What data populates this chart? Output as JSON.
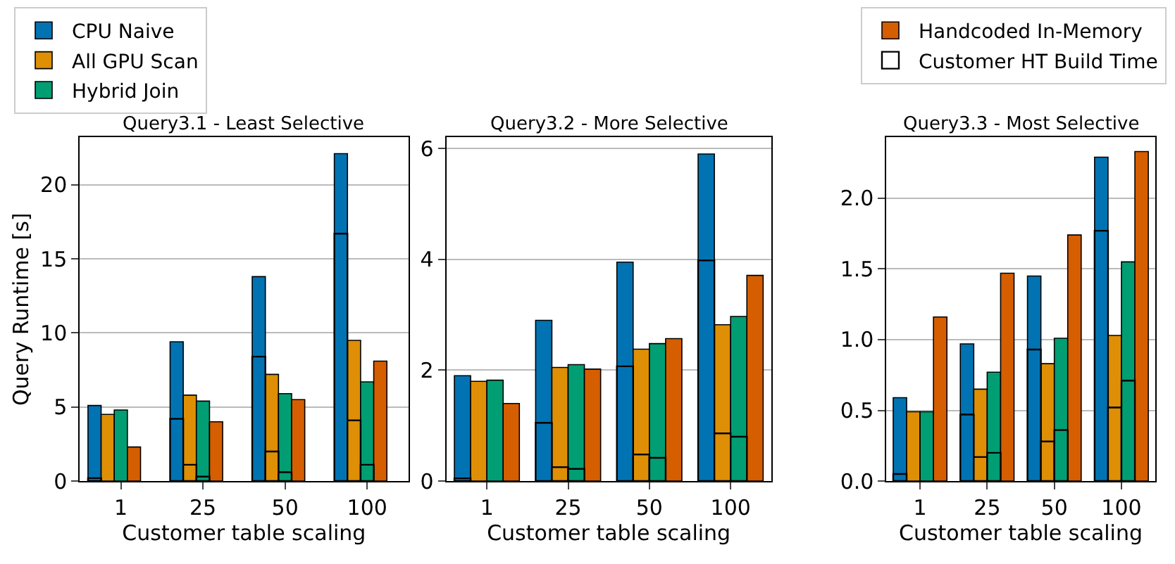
{
  "chart_data": [
    {
      "type": "bar",
      "title": "Query3.1 - Least Selective",
      "xlabel": "Customer table scaling",
      "ylabel": "Query Runtime [s]",
      "categories": [
        "1",
        "25",
        "50",
        "100"
      ],
      "ylim": [
        0,
        23.2
      ],
      "yticks": [
        0,
        5,
        10,
        15,
        20
      ],
      "grid": "y",
      "legend": "top",
      "series": [
        {
          "name": "CPU Naive",
          "color": "#0173b2",
          "base": [
            0.2,
            4.2,
            8.4,
            16.7
          ],
          "values": [
            4.9,
            5.2,
            5.4,
            5.4
          ]
        },
        {
          "name": "All GPU Scan",
          "color": "#de8f05",
          "base": [
            0,
            1.1,
            2.0,
            4.1
          ],
          "values": [
            4.5,
            4.7,
            5.2,
            5.4
          ]
        },
        {
          "name": "Hybrid Join",
          "color": "#029e73",
          "base": [
            0,
            0.3,
            0.6,
            1.1
          ],
          "values": [
            4.8,
            5.1,
            5.3,
            5.6
          ]
        },
        {
          "name": "Handcoded In-Memory",
          "color": "#d55e00",
          "values": [
            2.3,
            4.0,
            5.5,
            8.1
          ]
        },
        {
          "color": "#0173b2",
          "values": [
            0.2,
            4.2,
            8.4,
            16.7
          ]
        },
        {
          "color": "#de8f05",
          "values": [
            null,
            1.1,
            2.0,
            4.1
          ]
        },
        {
          "color": "#029e73",
          "values": [
            null,
            0.3,
            0.6,
            1.1
          ]
        },
        {
          "name": "Customer HT Build Time",
          "color": "#ffffff",
          "values": [
            null,
            null,
            null,
            null
          ]
        }
      ]
    },
    {
      "type": "bar",
      "title": "Query3.2 - More Selective",
      "xlabel": "Customer table scaling",
      "categories": [
        "1",
        "25",
        "50",
        "100"
      ],
      "ylim": [
        0,
        6.2
      ],
      "yticks": [
        0,
        2,
        4,
        6
      ],
      "grid": "y",
      "series": [
        {
          "color": "#0173b2",
          "base": [
            0.05,
            1.05,
            2.07,
            3.98
          ],
          "values": [
            1.85,
            1.85,
            1.88,
            1.92
          ]
        },
        {
          "color": "#de8f05",
          "base": [
            0,
            0.25,
            0.48,
            0.86
          ],
          "values": [
            1.8,
            1.8,
            1.9,
            1.96
          ]
        },
        {
          "color": "#029e73",
          "base": [
            0,
            0.22,
            0.42,
            0.8
          ],
          "values": [
            1.82,
            1.88,
            2.06,
            2.17
          ]
        },
        {
          "color": "#d55e00",
          "values": [
            1.4,
            2.02,
            2.57,
            3.71
          ]
        },
        {
          "color": "#0173b2",
          "values": [
            0.05,
            1.05,
            2.07,
            3.98
          ]
        },
        {
          "color": "#de8f05",
          "values": [
            null,
            0.25,
            0.48,
            0.86
          ]
        },
        {
          "color": "#029e73",
          "values": [
            null,
            0.22,
            0.42,
            0.8
          ]
        }
      ]
    },
    {
      "type": "bar",
      "title": "Query3.3 - Most Selective",
      "xlabel": "Customer table scaling",
      "categories": [
        "1",
        "25",
        "50",
        "100"
      ],
      "ylim": [
        0,
        2.43
      ],
      "yticks": [
        {
          "value": 0,
          "label": "0.0"
        },
        0.5,
        {
          "value": 1,
          "label": "1.0"
        },
        1.5,
        {
          "value": 2,
          "label": "2.0"
        }
      ],
      "grid": "y",
      "series": [
        {
          "color": "#0173b2",
          "base": [
            0.05,
            0.47,
            0.93,
            1.77
          ],
          "values": [
            0.54,
            0.5,
            0.52,
            0.52
          ]
        },
        {
          "color": "#de8f05",
          "base": [
            0,
            0.17,
            0.28,
            0.52
          ],
          "values": [
            0.49,
            0.48,
            0.55,
            0.51
          ]
        },
        {
          "color": "#029e73",
          "base": [
            0,
            0.2,
            0.36,
            0.71
          ],
          "values": [
            0.49,
            0.57,
            0.65,
            0.84
          ]
        },
        {
          "color": "#d55e00",
          "values": [
            1.16,
            1.47,
            1.74,
            2.33
          ]
        },
        {
          "color": "#0173b2",
          "values": [
            0.05,
            0.47,
            0.93,
            1.77
          ]
        },
        {
          "color": "#de8f05",
          "values": [
            null,
            0.17,
            0.28,
            0.52
          ]
        },
        {
          "color": "#029e73",
          "values": [
            null,
            0.2,
            0.36,
            0.71
          ]
        }
      ]
    }
  ]
}
